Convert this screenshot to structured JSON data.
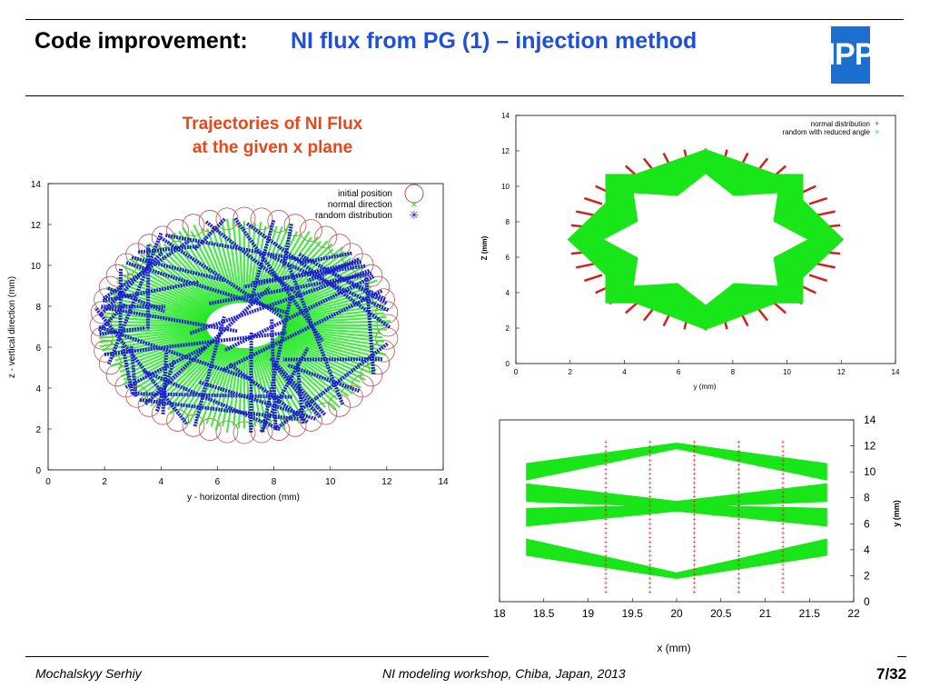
{
  "header": {
    "title_prefix": "Code improvement:",
    "title_main": "NI flux from PG (1) – injection method",
    "logo_text": "IPP"
  },
  "caption": {
    "line1": "Trajectories of NI Flux",
    "line2": "at the given x plane"
  },
  "plots": {
    "left": {
      "xlabel": "y - horizontal direction (mm)",
      "ylabel": "z - vertical direction (mm)",
      "xticks": [
        "0",
        "2",
        "4",
        "6",
        "8",
        "10",
        "12",
        "14"
      ],
      "yticks": [
        "0",
        "2",
        "4",
        "6",
        "8",
        "10",
        "12",
        "14"
      ],
      "legend": [
        "initial position",
        "normal direction",
        "random distribution"
      ]
    },
    "top_right": {
      "xlabel": "y (mm)",
      "ylabel": "Z (mm)",
      "xticks": [
        "0",
        "2",
        "4",
        "6",
        "8",
        "10",
        "12",
        "14"
      ],
      "yticks": [
        "0",
        "2",
        "4",
        "6",
        "8",
        "10",
        "12",
        "14"
      ],
      "legend": [
        "normal distribution",
        "random with reduced angle"
      ]
    },
    "bottom_right": {
      "xlabel": "x (mm)",
      "ylabel": "y (mm)",
      "xticks": [
        "18",
        "18.5",
        "19",
        "19.5",
        "20",
        "20.5",
        "21",
        "21.5",
        "22"
      ],
      "yticks": [
        "0",
        "2",
        "4",
        "6",
        "8",
        "10",
        "12",
        "14"
      ]
    }
  },
  "footer": {
    "author": "Mochalskyy Serhiy",
    "event": "NI modeling workshop,  Chiba, Japan, 2013",
    "page": "7/32"
  },
  "colors": {
    "blue_title": "#1f4fd8",
    "caption_red": "#e8471a",
    "green": "#19e619",
    "blue_traj": "#2020d0",
    "red_marks": "#d02020"
  }
}
